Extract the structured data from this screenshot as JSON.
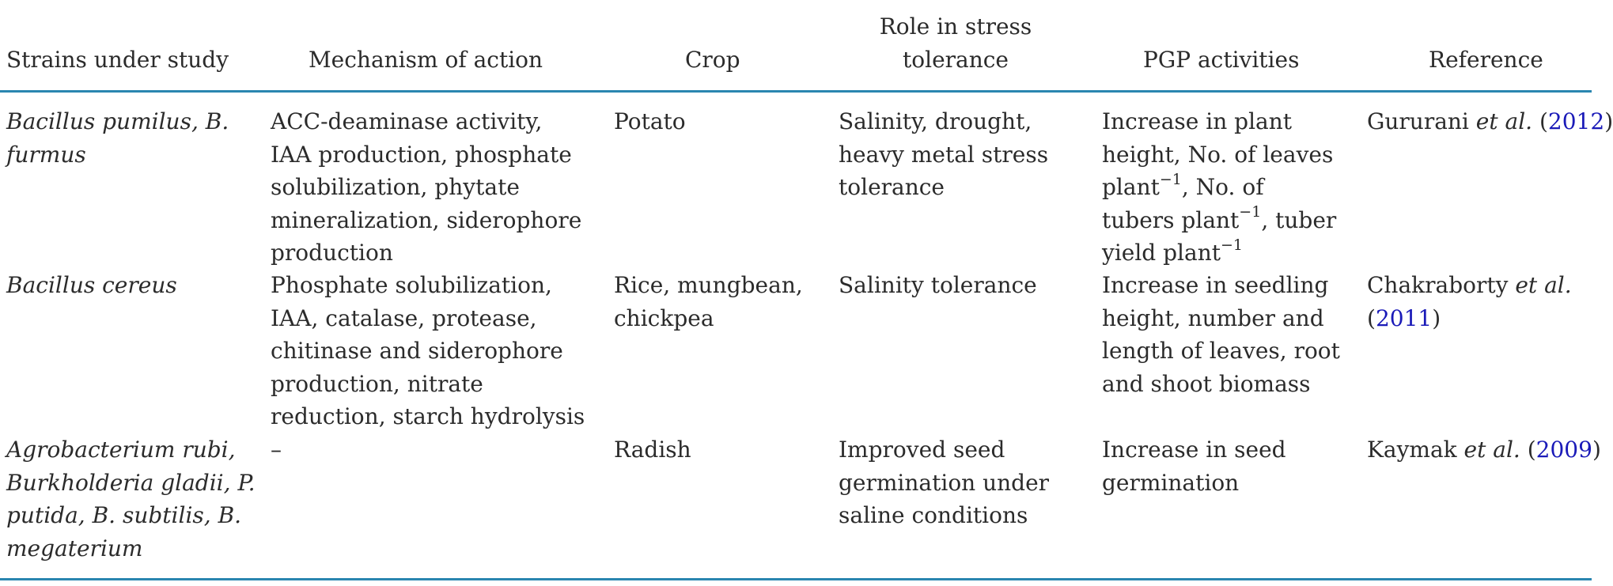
{
  "table": {
    "headers": {
      "strains": "Strains under study",
      "mechanism": "Mechanism of action",
      "crop": "Crop",
      "role": [
        "Role in stress",
        "tolerance"
      ],
      "pgp": "PGP activities",
      "reference": "Reference"
    },
    "rows": [
      {
        "strains": [
          "Bacillus pumilus, B.",
          "furmus"
        ],
        "mechanism": [
          "ACC-deaminase activity,",
          "IAA production, phosphate",
          "solubilization, phytate",
          "mineralization, siderophore",
          "production"
        ],
        "crop": [
          "Potato"
        ],
        "role": [
          "Salinity, drought,",
          "heavy metal stress",
          "tolerance"
        ],
        "pgp": {
          "l1": "Increase in plant",
          "l2": "height, No. of leaves",
          "l3a": "plant",
          "l3sup": "−1",
          "l3b": ", No. of",
          "l4a": "tubers plant",
          "l4sup": "−1",
          "l4b": ", tuber",
          "l5a": "yield plant",
          "l5sup": "−1"
        },
        "reference": {
          "author": "Gururani",
          "etal": "et al.",
          "open": "(",
          "year": "2012",
          "close": ")"
        }
      },
      {
        "strains": [
          "Bacillus cereus"
        ],
        "mechanism": [
          "Phosphate solubilization,",
          "IAA, catalase, protease,",
          "chitinase and siderophore",
          "production, nitrate",
          "reduction, starch hydrolysis"
        ],
        "crop": [
          "Rice, mungbean,",
          "chickpea"
        ],
        "role": [
          "Salinity tolerance"
        ],
        "pgp": [
          "Increase in seedling",
          "height, number and",
          "length of leaves, root",
          "and shoot biomass"
        ],
        "reference": {
          "author": "Chakraborty",
          "etal": "et al.",
          "open": "(",
          "year": "2011",
          "close": ")"
        }
      },
      {
        "strains": [
          "Agrobacterium rubi,",
          "Burkholderia gladii, P.",
          "putida, B. subtilis, B.",
          "megaterium"
        ],
        "mechanism": [
          "–"
        ],
        "crop": [
          "Radish"
        ],
        "role": [
          "Improved seed",
          "germination under",
          "saline conditions"
        ],
        "pgp": [
          "Increase in seed",
          "germination"
        ],
        "reference": {
          "author": "Kaymak",
          "etal": "et al.",
          "open": "(",
          "year": "2009",
          "close": ")"
        }
      }
    ]
  },
  "colors": {
    "rule": "#2a86b0",
    "link": "#1a1ab8",
    "text": "#2b2b2b"
  }
}
